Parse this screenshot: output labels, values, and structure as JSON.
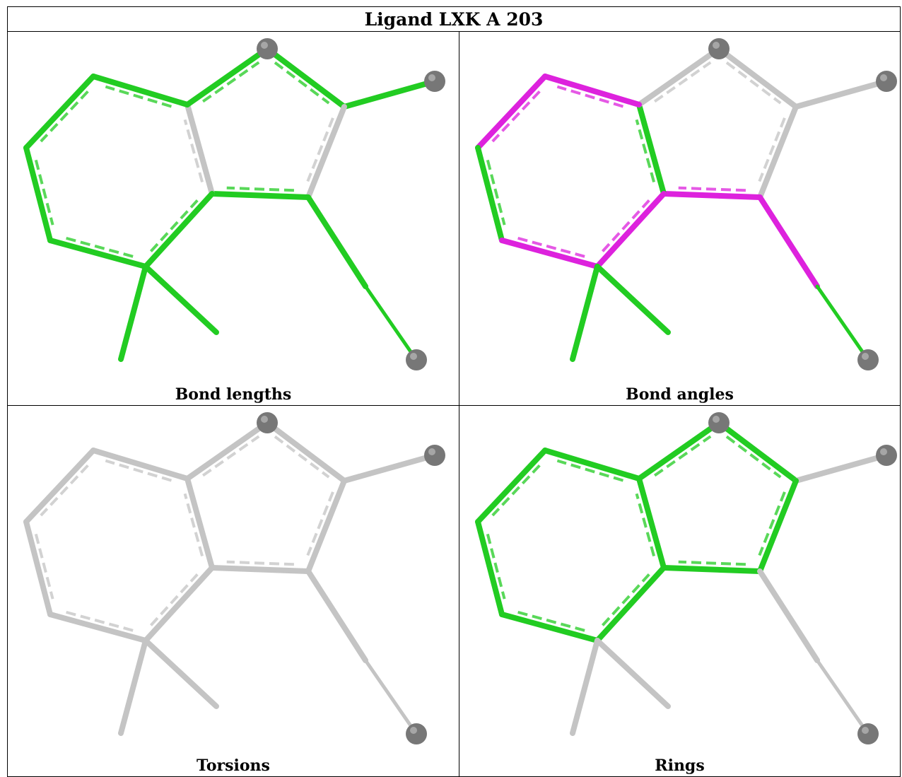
{
  "title": "Ligand LXK A 203",
  "colors": {
    "pass": "#22cc22",
    "outlier": "#dd22dd",
    "neutral": "#c4c4c4",
    "atom": "#777777"
  },
  "panels": [
    {
      "caption": "Bond lengths"
    },
    {
      "caption": "Bond angles"
    },
    {
      "caption": "Torsions"
    },
    {
      "caption": "Rings"
    }
  ]
}
